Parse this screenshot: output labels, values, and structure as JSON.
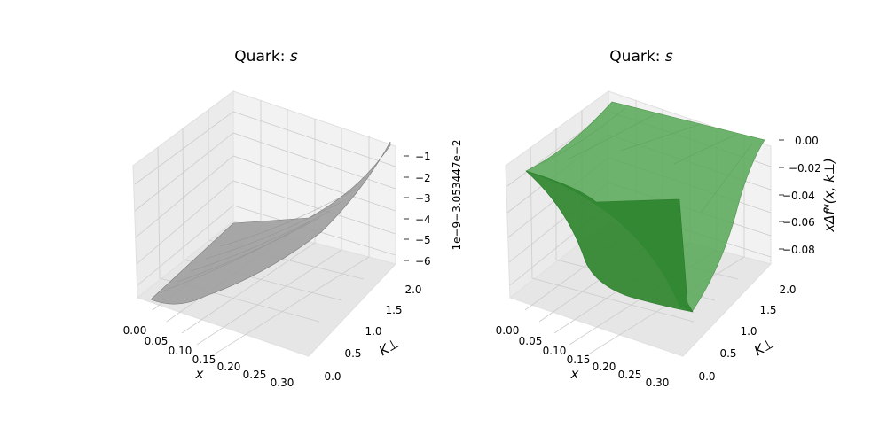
{
  "chart_data": [
    {
      "type": "surface3d",
      "title": "Quark: ",
      "title_var": "s",
      "xlabel": "x",
      "ylabel": "K⊥",
      "zlabel": "",
      "offset_text": "1e−9−3.053447e−2",
      "x_ticks": [
        "0.00",
        "0.05",
        "0.10",
        "0.15",
        "0.20",
        "0.25",
        "0.30"
      ],
      "y_ticks": [
        "0.0",
        "0.5",
        "1.0",
        "1.5",
        "2.0"
      ],
      "z_ticks": [
        "−1",
        "−2",
        "−3",
        "−4",
        "−5",
        "−6"
      ],
      "x_range": [
        0.0,
        0.3
      ],
      "y_range": [
        0.0,
        2.0
      ],
      "z_range": [
        -6.5,
        0.0
      ],
      "surface_color": "#9e9e9e",
      "grid": true
    },
    {
      "type": "surface3d",
      "title": "Quark: ",
      "title_var": "s",
      "xlabel": "x",
      "ylabel": "K⊥",
      "zlabel": "xΔfᴺ(x, k⊥)",
      "offset_text": "",
      "x_ticks": [
        "0.00",
        "0.05",
        "0.10",
        "0.15",
        "0.20",
        "0.25",
        "0.30"
      ],
      "y_ticks": [
        "0.0",
        "0.5",
        "1.0",
        "1.5",
        "2.0"
      ],
      "z_ticks": [
        "0.00",
        "−0.02",
        "−0.04",
        "−0.06",
        "−0.08"
      ],
      "x_range": [
        0.0,
        0.3
      ],
      "y_range": [
        0.0,
        2.0
      ],
      "z_range": [
        -0.09,
        0.0
      ],
      "surface_color": "#2e8b2e",
      "grid": true
    }
  ]
}
